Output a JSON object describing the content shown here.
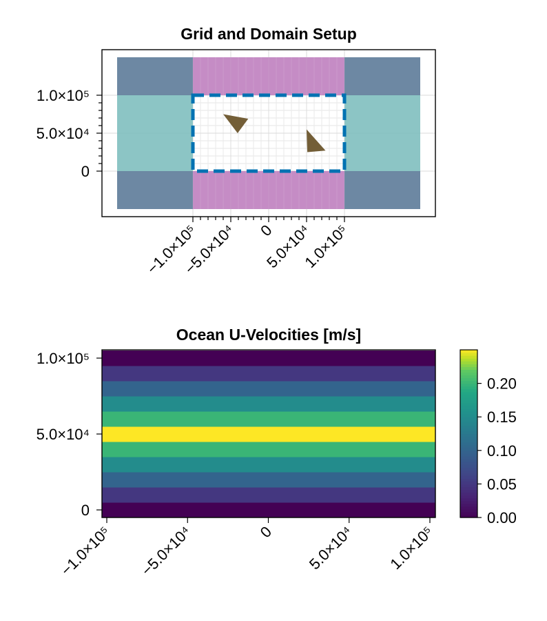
{
  "chart_data": [
    {
      "type": "other",
      "title": "Grid and Domain Setup",
      "xlim": [
        -100000,
        100000
      ],
      "ylim": [
        0,
        100000
      ],
      "x_ticks": [
        {
          "value": -100000,
          "label": "−1.0×10⁵"
        },
        {
          "value": -50000,
          "label": "−5.0×10⁴"
        },
        {
          "value": 0,
          "label": "0"
        },
        {
          "value": 50000,
          "label": "5.0×10⁴"
        },
        {
          "value": 100000,
          "label": "1.0×10⁵"
        }
      ],
      "y_ticks": [
        {
          "value": 0,
          "label": "0"
        },
        {
          "value": 50000,
          "label": "5.0×10⁴"
        },
        {
          "value": 100000,
          "label": "1.0×10⁵"
        }
      ],
      "grid": true,
      "regions": [
        {
          "kind": "corner",
          "x": [
            -200000,
            -100000
          ],
          "y": [
            -50000,
            0
          ],
          "color": "#5d7b99"
        },
        {
          "kind": "corner",
          "x": [
            100000,
            200000
          ],
          "y": [
            -50000,
            0
          ],
          "color": "#5d7b99"
        },
        {
          "kind": "corner",
          "x": [
            -200000,
            -100000
          ],
          "y": [
            100000,
            150000
          ],
          "color": "#5d7b99"
        },
        {
          "kind": "corner",
          "x": [
            100000,
            200000
          ],
          "y": [
            100000,
            150000
          ],
          "color": "#5d7b99"
        },
        {
          "kind": "side",
          "x": [
            -200000,
            -100000
          ],
          "y": [
            0,
            100000
          ],
          "color": "#7fbfbf"
        },
        {
          "kind": "side",
          "x": [
            100000,
            200000
          ],
          "y": [
            0,
            100000
          ],
          "color": "#7fbfbf"
        },
        {
          "kind": "top-bottom",
          "x": [
            -100000,
            100000
          ],
          "y": [
            100000,
            150000
          ],
          "color": "#bf7fbf"
        },
        {
          "kind": "top-bottom",
          "x": [
            -100000,
            100000
          ],
          "y": [
            -50000,
            0
          ],
          "color": "#bf7fbf"
        }
      ],
      "domain_boundary": {
        "x": [
          -100000,
          100000
        ],
        "y": [
          0,
          100000
        ],
        "color": "#0072b2",
        "style": "dashed"
      },
      "floes": [
        {
          "color": "#735e37",
          "vertices": [
            [
              -60000,
              75000
            ],
            [
              -27000,
              69000
            ],
            [
              -41000,
              50000
            ]
          ]
        },
        {
          "color": "#735e37",
          "vertices": [
            [
              50000,
              55000
            ],
            [
              75000,
              27000
            ],
            [
              51000,
              25000
            ]
          ]
        }
      ]
    },
    {
      "type": "heatmap",
      "title": "Ocean U-Velocities [m/s]",
      "xlim": [
        -100000,
        100000
      ],
      "ylim": [
        0,
        100000
      ],
      "x_ticks": [
        {
          "value": -100000,
          "label": "−1.0×10⁵"
        },
        {
          "value": -50000,
          "label": "−5.0×10⁴"
        },
        {
          "value": 0,
          "label": "0"
        },
        {
          "value": 50000,
          "label": "5.0×10⁴"
        },
        {
          "value": 100000,
          "label": "1.0×10⁵"
        }
      ],
      "y_ticks": [
        {
          "value": 0,
          "label": "0"
        },
        {
          "value": 50000,
          "label": "5.0×10⁴"
        },
        {
          "value": 100000,
          "label": "1.0×10⁵"
        }
      ],
      "colormap": "viridis",
      "row_y": [
        0,
        10000,
        20000,
        30000,
        40000,
        50000,
        60000,
        70000,
        80000,
        90000,
        100000
      ],
      "values": [
        0.0,
        0.05,
        0.1,
        0.15,
        0.2,
        0.25,
        0.2,
        0.15,
        0.1,
        0.05,
        0.0
      ],
      "colorbar": {
        "range": [
          0,
          0.25
        ],
        "ticks": [
          {
            "value": 0.0,
            "label": "0.00"
          },
          {
            "value": 0.05,
            "label": "0.05"
          },
          {
            "value": 0.1,
            "label": "0.10"
          },
          {
            "value": 0.15,
            "label": "0.15"
          },
          {
            "value": 0.2,
            "label": "0.20"
          }
        ]
      }
    }
  ]
}
